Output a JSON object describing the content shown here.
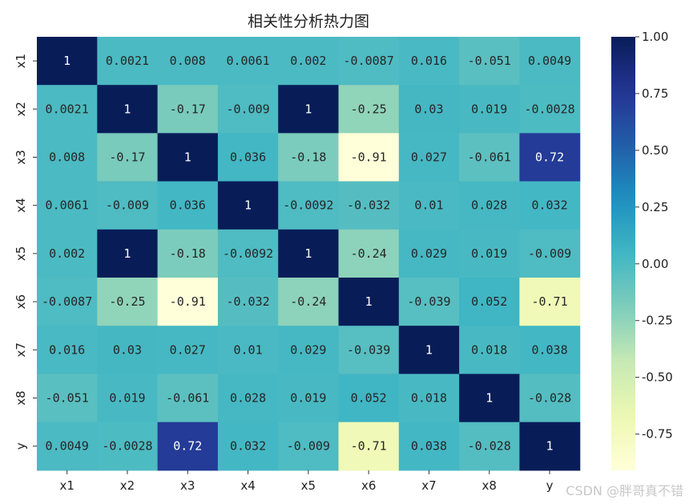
{
  "chart_data": {
    "type": "heatmap",
    "title": "相关性分析热力图",
    "x_labels": [
      "x1",
      "x2",
      "x3",
      "x4",
      "x5",
      "x6",
      "x7",
      "x8",
      "y"
    ],
    "y_labels": [
      "x1",
      "x2",
      "x3",
      "x4",
      "x5",
      "x6",
      "x7",
      "x8",
      "y"
    ],
    "values": [
      [
        1,
        0.0021,
        0.008,
        0.0061,
        0.002,
        -0.0087,
        0.016,
        -0.051,
        0.0049
      ],
      [
        0.0021,
        1,
        -0.17,
        -0.009,
        1,
        -0.25,
        0.03,
        0.019,
        -0.0028
      ],
      [
        0.008,
        -0.17,
        1,
        0.036,
        -0.18,
        -0.91,
        0.027,
        -0.061,
        0.72
      ],
      [
        0.0061,
        -0.009,
        0.036,
        1,
        -0.0092,
        -0.032,
        0.01,
        0.028,
        0.032
      ],
      [
        0.002,
        1,
        -0.18,
        -0.0092,
        1,
        -0.24,
        0.029,
        0.019,
        -0.009
      ],
      [
        -0.0087,
        -0.25,
        -0.91,
        -0.032,
        -0.24,
        1,
        -0.039,
        0.052,
        -0.71
      ],
      [
        0.016,
        0.03,
        0.027,
        0.01,
        0.029,
        -0.039,
        1,
        0.018,
        0.038
      ],
      [
        -0.051,
        0.019,
        -0.061,
        0.028,
        0.019,
        0.052,
        0.018,
        1,
        -0.028
      ],
      [
        0.0049,
        -0.0028,
        0.72,
        0.032,
        -0.009,
        -0.71,
        0.038,
        -0.028,
        1
      ]
    ],
    "value_labels": [
      [
        "1",
        "0.0021",
        "0.008",
        "0.0061",
        "0.002",
        "-0.0087",
        "0.016",
        "-0.051",
        "0.0049"
      ],
      [
        "0.0021",
        "1",
        "-0.17",
        "-0.009",
        "1",
        "-0.25",
        "0.03",
        "0.019",
        "-0.0028"
      ],
      [
        "0.008",
        "-0.17",
        "1",
        "0.036",
        "-0.18",
        "-0.91",
        "0.027",
        "-0.061",
        "0.72"
      ],
      [
        "0.0061",
        "-0.009",
        "0.036",
        "1",
        "-0.0092",
        "-0.032",
        "0.01",
        "0.028",
        "0.032"
      ],
      [
        "0.002",
        "1",
        "-0.18",
        "-0.0092",
        "1",
        "-0.24",
        "0.029",
        "0.019",
        "-0.009"
      ],
      [
        "-0.0087",
        "-0.25",
        "-0.91",
        "-0.032",
        "-0.24",
        "1",
        "-0.039",
        "0.052",
        "-0.71"
      ],
      [
        "0.016",
        "0.03",
        "0.027",
        "0.01",
        "0.029",
        "-0.039",
        "1",
        "0.018",
        "0.038"
      ],
      [
        "-0.051",
        "0.019",
        "-0.061",
        "0.028",
        "0.019",
        "0.052",
        "0.018",
        "1",
        "-0.028"
      ],
      [
        "0.0049",
        "-0.0028",
        "0.72",
        "0.032",
        "-0.009",
        "-0.71",
        "0.038",
        "-0.028",
        "1"
      ]
    ],
    "colorscale": "YlGnBu",
    "color_range": [
      -0.91,
      1
    ],
    "colorbar_ticks": [
      "1.00",
      "0.75",
      "0.50",
      "0.25",
      "0.00",
      "-0.25",
      "-0.50",
      "-0.75"
    ],
    "colorbar_tick_values": [
      1.0,
      0.75,
      0.5,
      0.25,
      0.0,
      -0.25,
      -0.5,
      -0.75
    ]
  },
  "watermark": "CSDN @胖哥真不错"
}
